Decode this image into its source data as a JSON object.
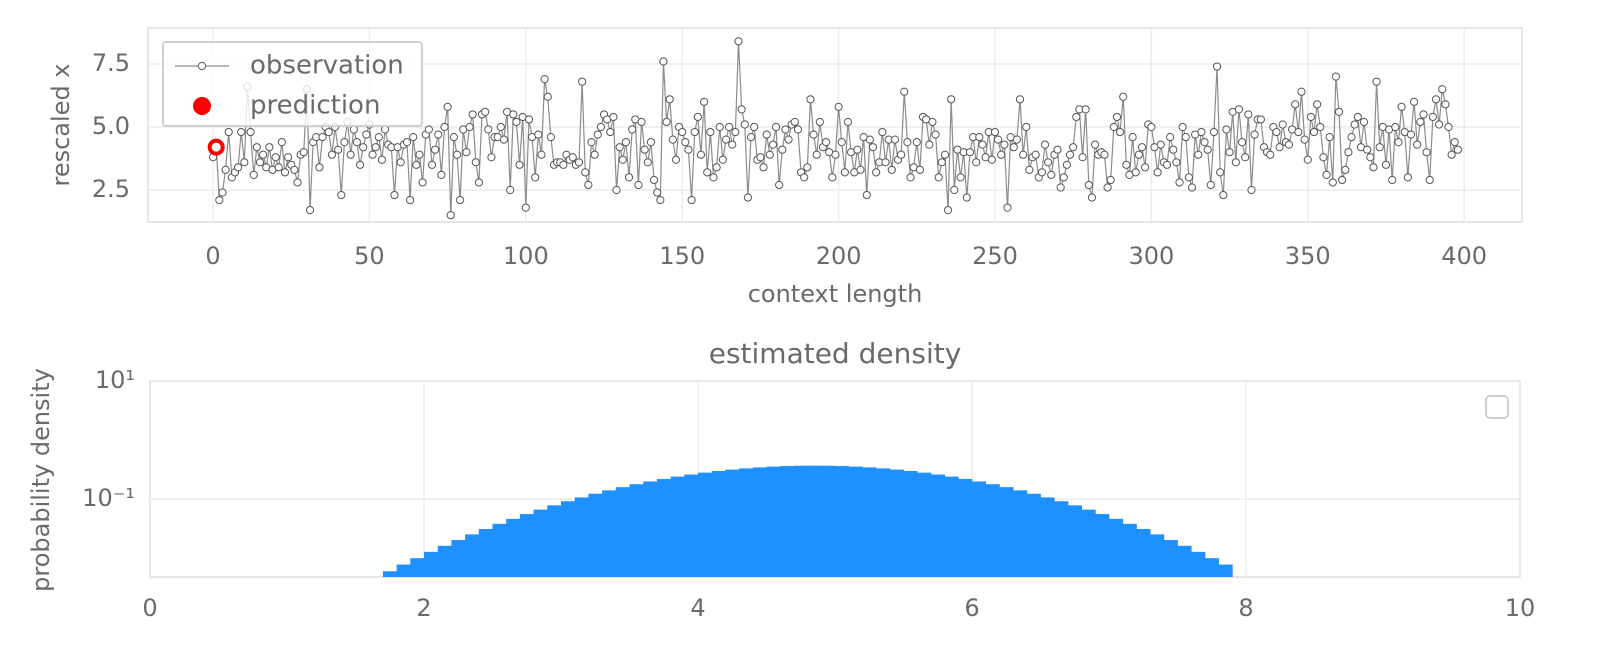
{
  "chart_data": [
    {
      "type": "line",
      "xlabel": "context length",
      "ylabel": "rescaled x",
      "legend": "upper left",
      "grid": true,
      "xlim": [
        -20.8,
        418.5
      ],
      "ylim": [
        1.23,
        8.93
      ],
      "xticks": [
        0,
        50,
        100,
        150,
        200,
        250,
        300,
        350,
        400
      ],
      "yticks": [
        2.5,
        {
          "value": 5.0,
          "label": "5.0"
        },
        7.5
      ],
      "series": [
        {
          "name": "observation",
          "color": "#8c8c8c",
          "x": [
            0,
            1,
            2,
            3,
            4,
            5,
            6,
            7,
            8,
            9,
            10,
            11,
            12,
            13,
            14,
            15,
            16,
            17,
            18,
            19,
            20,
            21,
            22,
            23,
            24,
            25,
            26,
            27,
            28,
            29,
            30,
            31,
            32,
            33,
            34,
            35,
            36,
            37,
            38,
            39,
            40,
            41,
            42,
            43,
            44,
            45,
            46,
            47,
            48,
            49,
            50,
            51,
            52,
            53,
            54,
            55,
            56,
            57,
            58,
            59,
            60,
            61,
            62,
            63,
            64,
            65,
            66,
            67,
            68,
            69,
            70,
            71,
            72,
            73,
            74,
            75,
            76,
            77,
            78,
            79,
            80,
            81,
            82,
            83,
            84,
            85,
            86,
            87,
            88,
            89,
            90,
            91,
            92,
            93,
            94,
            95,
            96,
            97,
            98,
            99,
            100,
            101,
            102,
            103,
            104,
            105,
            106,
            107,
            108,
            109,
            110,
            111,
            112,
            113,
            114,
            115,
            116,
            117,
            118,
            119,
            120,
            121,
            122,
            123,
            124,
            125,
            126,
            127,
            128,
            129,
            130,
            131,
            132,
            133,
            134,
            135,
            136,
            137,
            138,
            139,
            140,
            141,
            142,
            143,
            144,
            145,
            146,
            147,
            148,
            149,
            150,
            151,
            152,
            153,
            154,
            155,
            156,
            157,
            158,
            159,
            160,
            161,
            162,
            163,
            164,
            165,
            166,
            167,
            168,
            169,
            170,
            171,
            172,
            173,
            174,
            175,
            176,
            177,
            178,
            179,
            180,
            181,
            182,
            183,
            184,
            185,
            186,
            187,
            188,
            189,
            190,
            191,
            192,
            193,
            194,
            195,
            196,
            197,
            198,
            199,
            200,
            201,
            202,
            203,
            204,
            205,
            206,
            207,
            208,
            209,
            210,
            211,
            212,
            213,
            214,
            215,
            216,
            217,
            218,
            219,
            220,
            221,
            222,
            223,
            224,
            225,
            226,
            227,
            228,
            229,
            230,
            231,
            232,
            233,
            234,
            235,
            236,
            237,
            238,
            239,
            240,
            241,
            242,
            243,
            244,
            245,
            246,
            247,
            248,
            249,
            250,
            251,
            252,
            253,
            254,
            255,
            256,
            257,
            258,
            259,
            260,
            261,
            262,
            263,
            264,
            265,
            266,
            267,
            268,
            269,
            270,
            271,
            272,
            273,
            274,
            275,
            276,
            277,
            278,
            279,
            280,
            281,
            282,
            283,
            284,
            285,
            286,
            287,
            288,
            289,
            290,
            291,
            292,
            293,
            294,
            295,
            296,
            297,
            298,
            299,
            300,
            301,
            302,
            303,
            304,
            305,
            306,
            307,
            308,
            309,
            310,
            311,
            312,
            313,
            314,
            315,
            316,
            317,
            318,
            319,
            320,
            321,
            322,
            323,
            324,
            325,
            326,
            327,
            328,
            329,
            330,
            331,
            332,
            333,
            334,
            335,
            336,
            337,
            338,
            339,
            340,
            341,
            342,
            343,
            344,
            345,
            346,
            347,
            348,
            349,
            350,
            351,
            352,
            353,
            354,
            355,
            356,
            357,
            358,
            359,
            360,
            361,
            362,
            363,
            364,
            365,
            366,
            367,
            368,
            369,
            370,
            371,
            372,
            373,
            374,
            375,
            376,
            377,
            378,
            379,
            380,
            381,
            382,
            383,
            384,
            385,
            386,
            387,
            388,
            389,
            390,
            391,
            392,
            393,
            394,
            395,
            396,
            397,
            398
          ],
          "values": [
            3.8,
            4.2,
            2.1,
            2.4,
            3.3,
            4.8,
            3.0,
            3.2,
            3.4,
            4.8,
            3.6,
            6.6,
            4.8,
            3.1,
            4.2,
            3.6,
            3.9,
            3.4,
            4.2,
            3.3,
            3.8,
            3.4,
            4.4,
            3.2,
            3.8,
            3.5,
            3.3,
            2.8,
            3.9,
            4.0,
            6.5,
            1.7,
            4.4,
            4.6,
            3.4,
            4.6,
            5.0,
            4.8,
            3.9,
            5.0,
            4.1,
            2.3,
            4.4,
            5.2,
            3.9,
            4.9,
            4.4,
            3.5,
            4.2,
            4.7,
            5.1,
            3.9,
            4.2,
            4.6,
            3.7,
            4.9,
            4.3,
            4.2,
            2.3,
            4.2,
            3.6,
            4.3,
            4.4,
            2.1,
            4.6,
            3.5,
            3.9,
            2.8,
            4.7,
            4.9,
            3.5,
            4.1,
            4.7,
            3.1,
            5.0,
            5.8,
            1.5,
            4.6,
            3.9,
            2.1,
            4.9,
            4.0,
            5.0,
            5.5,
            3.6,
            2.8,
            5.5,
            5.6,
            4.9,
            3.8,
            4.6,
            4.6,
            5.0,
            4.5,
            5.6,
            2.5,
            5.5,
            5.2,
            3.5,
            5.4,
            1.8,
            5.3,
            4.6,
            3.0,
            4.7,
            3.9,
            6.9,
            6.2,
            4.6,
            3.5,
            3.6,
            3.6,
            3.5,
            3.9,
            3.7,
            3.8,
            3.5,
            3.6,
            6.8,
            3.2,
            2.7,
            4.4,
            3.9,
            4.7,
            5.0,
            5.5,
            5.3,
            4.8,
            5.4,
            2.5,
            4.2,
            3.7,
            4.4,
            3.0,
            4.9,
            5.3,
            2.7,
            5.2,
            4.1,
            3.6,
            4.4,
            2.9,
            2.4,
            2.1,
            7.6,
            5.2,
            6.1,
            4.5,
            3.7,
            5.0,
            4.8,
            4.4,
            4.1,
            2.1,
            4.8,
            5.4,
            3.9,
            6.0,
            3.2,
            4.8,
            3.0,
            3.4,
            5.0,
            3.7,
            4.5,
            5.0,
            4.3,
            4.8,
            8.4,
            5.7,
            5.1,
            2.2,
            4.6,
            5.0,
            3.7,
            3.8,
            3.4,
            4.7,
            3.9,
            4.3,
            5.0,
            2.7,
            4.1,
            4.9,
            4.5,
            5.1,
            5.2,
            4.9,
            3.2,
            3.0,
            3.4,
            6.1,
            4.7,
            3.9,
            5.2,
            4.2,
            4.4,
            4.0,
            3.0,
            3.9,
            5.8,
            4.4,
            3.2,
            5.2,
            4.0,
            3.2,
            4.1,
            3.3,
            4.6,
            2.3,
            4.5,
            4.2,
            3.2,
            3.6,
            4.8,
            3.6,
            4.5,
            3.3,
            4.5,
            3.7,
            3.9,
            6.4,
            4.4,
            3.0,
            3.4,
            4.4,
            3.3,
            5.4,
            5.3,
            4.3,
            5.2,
            4.7,
            3.0,
            3.6,
            3.9,
            1.7,
            6.1,
            2.5,
            4.1,
            3.0,
            4.0,
            2.2,
            4.0,
            4.6,
            3.6,
            4.6,
            4.3,
            3.8,
            4.8,
            3.7,
            4.8,
            4.5,
            3.9,
            4.3,
            1.8,
            4.6,
            4.2,
            4.5,
            6.1,
            3.9,
            5.0,
            3.3,
            3.8,
            3.9,
            3.0,
            3.2,
            4.3,
            3.6,
            3.1,
            3.9,
            4.1,
            2.6,
            3.0,
            3.5,
            3.9,
            4.2,
            5.4,
            5.7,
            3.8,
            5.7,
            2.7,
            2.2,
            4.3,
            3.9,
            4.0,
            3.9,
            2.6,
            2.9,
            5.0,
            5.4,
            4.8,
            6.2,
            3.5,
            3.1,
            4.6,
            3.2,
            3.9,
            4.2,
            3.4,
            5.1,
            5.0,
            4.2,
            3.2,
            4.3,
            3.6,
            3.5,
            4.6,
            4.1,
            3.6,
            2.8,
            5.0,
            4.6,
            3.0,
            2.6,
            4.7,
            3.9,
            4.8,
            4.4,
            4.1,
            2.7,
            4.8,
            7.4,
            3.2,
            2.3,
            4.9,
            4.0,
            5.6,
            3.6,
            5.7,
            4.4,
            3.8,
            5.5,
            2.5,
            4.7,
            5.3,
            5.3,
            4.2,
            4.0,
            3.9,
            5.0,
            4.8,
            4.2,
            5.1,
            4.4,
            4.3,
            4.9,
            5.9,
            4.8,
            6.4,
            4.5,
            3.7,
            5.4,
            4.8,
            5.9,
            5.0,
            3.8,
            3.1,
            4.6,
            2.8,
            7.0,
            5.6,
            2.9,
            3.3,
            4.0,
            4.6,
            5.1,
            5.4,
            4.2,
            5.2,
            4.1,
            3.8,
            3.4,
            6.8,
            4.2,
            5.0,
            3.5,
            4.9,
            2.9,
            5.0,
            4.4,
            5.8,
            4.8,
            3.0,
            4.7,
            6.0,
            4.3,
            5.2,
            5.5,
            4.0,
            2.9,
            5.4,
            6.1,
            5.1,
            6.5,
            5.9,
            5.0,
            3.9,
            4.4,
            4.1
          ]
        },
        {
          "name": "prediction",
          "color": "#ff0000",
          "x": [
            1
          ],
          "values": [
            4.2
          ]
        }
      ]
    },
    {
      "type": "histogram",
      "title": "estimated density",
      "ylabel": "probability density",
      "log_y": true,
      "grid": true,
      "color": "#1e90ff",
      "xlim": [
        0,
        10
      ],
      "ylim": [
        0.0048,
        10
      ],
      "xticks": [
        0,
        2,
        4,
        6,
        8,
        10
      ],
      "yticks": [
        {
          "value": 10,
          "label": "10¹"
        },
        {
          "value": 0.1,
          "label": "10⁻¹"
        }
      ],
      "bins": [
        1.7,
        1.8,
        1.9,
        2.0,
        2.1,
        2.2,
        2.3,
        2.4,
        2.5,
        2.6,
        2.7,
        2.8,
        2.9,
        3.0,
        3.1,
        3.2,
        3.3,
        3.4,
        3.5,
        3.6,
        3.7,
        3.8,
        3.9,
        4.0,
        4.1,
        4.2,
        4.3,
        4.4,
        4.5,
        4.6,
        4.7,
        4.8,
        4.9,
        5.0,
        5.1,
        5.2,
        5.3,
        5.4,
        5.5,
        5.6,
        5.7,
        5.8,
        5.9,
        6.0,
        6.1,
        6.2,
        6.3,
        6.4,
        6.5,
        6.6,
        6.7,
        6.8,
        6.9,
        7.0,
        7.1,
        7.2,
        7.3,
        7.4,
        7.5,
        7.6,
        7.7,
        7.8,
        7.9
      ],
      "values": [
        0.006,
        0.0078,
        0.01,
        0.0128,
        0.0162,
        0.0203,
        0.0253,
        0.0312,
        0.0382,
        0.0463,
        0.0558,
        0.0664,
        0.0785,
        0.092,
        0.1069,
        0.1232,
        0.1407,
        0.1593,
        0.1788,
        0.199,
        0.2197,
        0.2404,
        0.2608,
        0.2805,
        0.2991,
        0.3162,
        0.3315,
        0.3445,
        0.355,
        0.3627,
        0.3674,
        0.369,
        0.3674,
        0.3627,
        0.355,
        0.3445,
        0.3315,
        0.3162,
        0.2991,
        0.2805,
        0.2608,
        0.2404,
        0.2197,
        0.199,
        0.1788,
        0.1593,
        0.1407,
        0.1232,
        0.1069,
        0.092,
        0.0785,
        0.0664,
        0.0558,
        0.0463,
        0.0382,
        0.0312,
        0.0253,
        0.0203,
        0.0162,
        0.0128,
        0.01,
        0.0078
      ]
    }
  ]
}
